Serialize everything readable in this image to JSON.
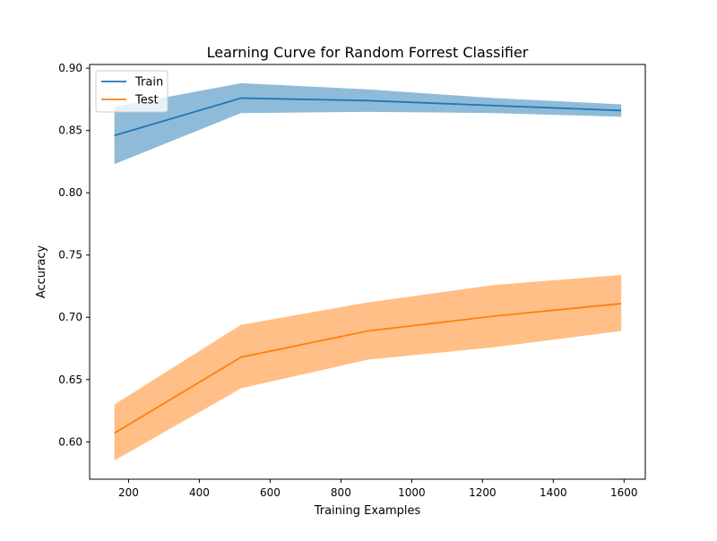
{
  "chart_data": {
    "type": "line",
    "title": "Learning Curve for Random Forrest Classifier",
    "xlabel": "Training Examples",
    "ylabel": "Accuracy",
    "xlim": [
      90,
      1660
    ],
    "ylim": [
      0.57,
      0.903
    ],
    "xticks": [
      200,
      400,
      600,
      800,
      1000,
      1200,
      1400,
      1600
    ],
    "yticks": [
      0.6,
      0.65,
      0.7,
      0.75,
      0.8,
      0.85,
      0.9
    ],
    "x": [
      160,
      518,
      876,
      1234,
      1592
    ],
    "legend_position": "top-left",
    "grid": false,
    "series": [
      {
        "name": "Train",
        "color": "#1f77b4",
        "band_color": "#1f77b4",
        "values": [
          0.846,
          0.876,
          0.874,
          0.87,
          0.866
        ],
        "upper": [
          0.869,
          0.888,
          0.883,
          0.876,
          0.871
        ],
        "lower": [
          0.823,
          0.864,
          0.865,
          0.864,
          0.861
        ]
      },
      {
        "name": "Test",
        "color": "#ff7f0e",
        "band_color": "#ff7f0e",
        "values": [
          0.607,
          0.668,
          0.689,
          0.701,
          0.711
        ],
        "upper": [
          0.63,
          0.694,
          0.712,
          0.726,
          0.734
        ],
        "lower": [
          0.585,
          0.643,
          0.666,
          0.676,
          0.689
        ]
      }
    ]
  }
}
